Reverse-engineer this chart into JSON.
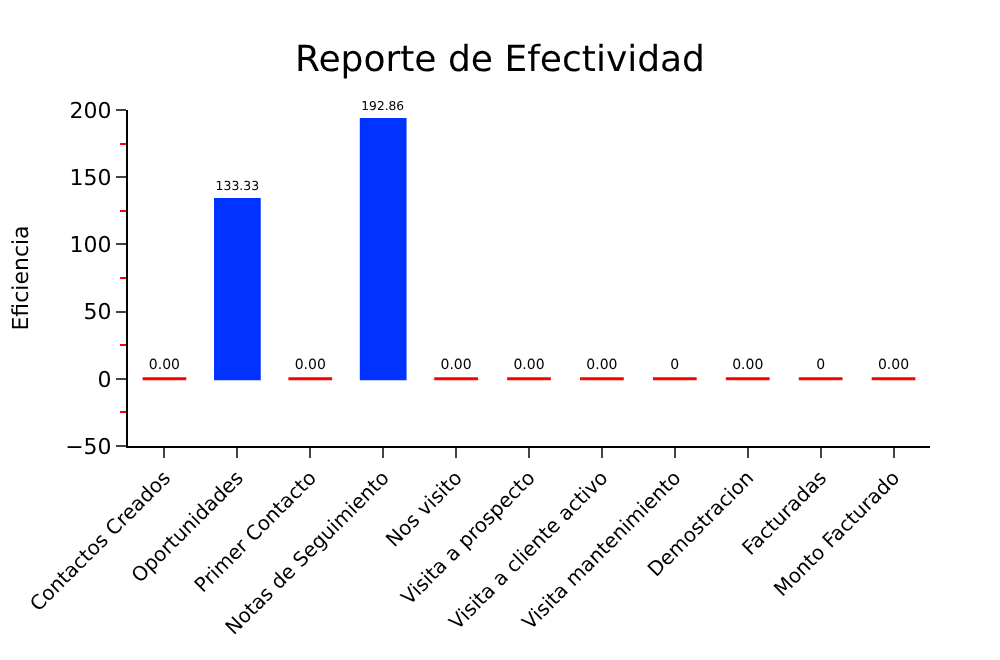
{
  "chart_data": {
    "type": "bar",
    "title": "Reporte de Efectividad",
    "ylabel": "Eficiencia",
    "categories": [
      "Contactos Creados",
      "Oportunidades",
      "Primer Contacto",
      "Notas de Seguimiento",
      "Nos visito",
      "Visita a prospecto",
      "Visita a cliente activo",
      "Visita mantenimiento",
      "Demostracion",
      "Facturadas",
      "Monto Facturado"
    ],
    "values": [
      0,
      133.33,
      0,
      192.86,
      0,
      0,
      0,
      0,
      0,
      0,
      0
    ],
    "value_labels": [
      "0.00",
      "133.33",
      "0.00",
      "192.86",
      "0.00",
      "0.00",
      "0.00",
      "0",
      "0.00",
      "0",
      "0.00"
    ],
    "colors": [
      "#ff0000",
      "#0033ff",
      "#ff0000",
      "#0033ff",
      "#ff0000",
      "#ff0000",
      "#ff0000",
      "#ff0000",
      "#ff0000",
      "#ff0000",
      "#ff0000"
    ],
    "ylim": [
      -50,
      200
    ],
    "yticks": [
      -50,
      0,
      50,
      100,
      150,
      200
    ]
  }
}
